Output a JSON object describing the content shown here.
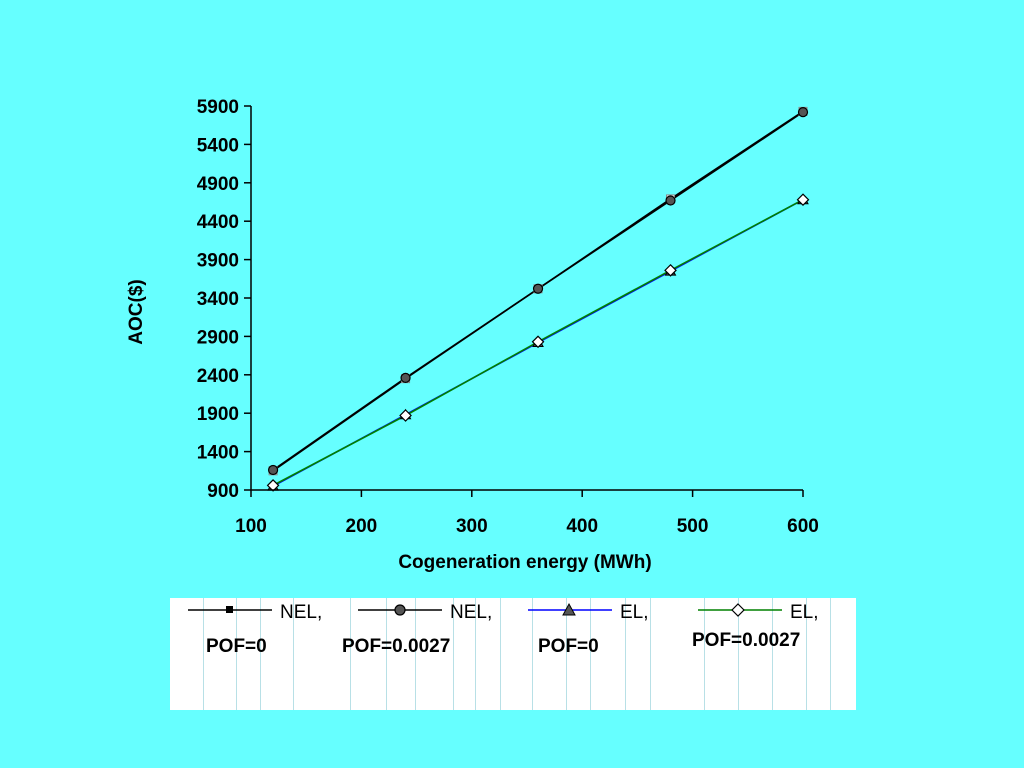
{
  "chart_data": {
    "type": "line",
    "xlabel": "Cogeneration energy (MWh)",
    "ylabel": "AOC($)",
    "xlim": [
      100,
      600
    ],
    "ylim": [
      900,
      5900
    ],
    "x_ticks": [
      "100",
      "200",
      "300",
      "400",
      "500",
      "600"
    ],
    "y_ticks": [
      "900",
      "1400",
      "1900",
      "2400",
      "2900",
      "3400",
      "3900",
      "4400",
      "4900",
      "5400",
      "5900"
    ],
    "x": [
      120,
      240,
      360,
      480,
      600
    ],
    "legend_position": "bottom",
    "series": [
      {
        "name": "NEL,",
        "detail": "POF=0",
        "marker": "square",
        "color": "#000000",
        "values": [
          1150,
          2350,
          3520,
          4690,
          5830
        ]
      },
      {
        "name": "NEL,",
        "detail": "POF=0.0027",
        "marker": "circle",
        "color": "#000000",
        "values": [
          1160,
          2360,
          3520,
          4670,
          5820
        ]
      },
      {
        "name": "EL,",
        "detail": "POF=0",
        "marker": "triangle",
        "color": "#0000ff",
        "values": [
          950,
          1880,
          2820,
          3750,
          4680
        ]
      },
      {
        "name": "EL,",
        "detail": "POF=0.0027",
        "marker": "diamond",
        "color": "#008000",
        "values": [
          960,
          1870,
          2830,
          3760,
          4680
        ]
      }
    ]
  }
}
